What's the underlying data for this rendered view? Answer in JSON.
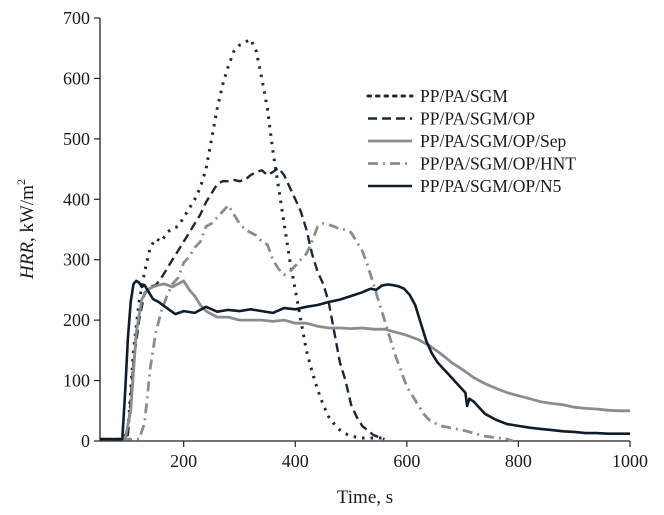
{
  "chart_data": {
    "type": "line",
    "title": "",
    "xlabel": "Time, s",
    "ylabel_main": "HRR",
    "ylabel_unit": ", kW/m",
    "ylabel_sup": "2",
    "xlim": [
      50,
      1000
    ],
    "ylim": [
      0,
      700
    ],
    "xticks": [
      200,
      400,
      600,
      800,
      1000
    ],
    "yticks": [
      0,
      100,
      200,
      300,
      400,
      500,
      600,
      700
    ],
    "grid": false,
    "legend_position": "top-right",
    "series": [
      {
        "name": "PP/PA/SGM",
        "color": "#1a2a3a",
        "style": "dotted",
        "points": [
          [
            50,
            3
          ],
          [
            90,
            3
          ],
          [
            100,
            15
          ],
          [
            110,
            150
          ],
          [
            120,
            230
          ],
          [
            130,
            280
          ],
          [
            140,
            320
          ],
          [
            150,
            335
          ],
          [
            160,
            330
          ],
          [
            170,
            345
          ],
          [
            180,
            352
          ],
          [
            190,
            355
          ],
          [
            200,
            370
          ],
          [
            210,
            385
          ],
          [
            220,
            400
          ],
          [
            230,
            420
          ],
          [
            240,
            450
          ],
          [
            250,
            500
          ],
          [
            260,
            550
          ],
          [
            270,
            590
          ],
          [
            280,
            620
          ],
          [
            290,
            645
          ],
          [
            300,
            655
          ],
          [
            310,
            660
          ],
          [
            320,
            665
          ],
          [
            330,
            645
          ],
          [
            340,
            600
          ],
          [
            350,
            550
          ],
          [
            360,
            480
          ],
          [
            370,
            420
          ],
          [
            380,
            360
          ],
          [
            390,
            300
          ],
          [
            400,
            250
          ],
          [
            410,
            200
          ],
          [
            420,
            150
          ],
          [
            430,
            115
          ],
          [
            440,
            85
          ],
          [
            450,
            60
          ],
          [
            460,
            40
          ],
          [
            470,
            28
          ],
          [
            480,
            18
          ],
          [
            490,
            12
          ],
          [
            500,
            8
          ],
          [
            520,
            5
          ],
          [
            560,
            5
          ]
        ]
      },
      {
        "name": "PP/PA/SGM/OP",
        "color": "#1a2a3a",
        "style": "dashed",
        "points": [
          [
            50,
            3
          ],
          [
            90,
            3
          ],
          [
            100,
            10
          ],
          [
            110,
            130
          ],
          [
            120,
            200
          ],
          [
            130,
            245
          ],
          [
            140,
            255
          ],
          [
            150,
            258
          ],
          [
            160,
            270
          ],
          [
            170,
            285
          ],
          [
            180,
            300
          ],
          [
            190,
            315
          ],
          [
            200,
            330
          ],
          [
            210,
            345
          ],
          [
            220,
            360
          ],
          [
            230,
            375
          ],
          [
            240,
            395
          ],
          [
            250,
            410
          ],
          [
            260,
            425
          ],
          [
            270,
            430
          ],
          [
            280,
            430
          ],
          [
            290,
            432
          ],
          [
            300,
            430
          ],
          [
            310,
            432
          ],
          [
            320,
            440
          ],
          [
            330,
            445
          ],
          [
            340,
            448
          ],
          [
            350,
            440
          ],
          [
            360,
            445
          ],
          [
            370,
            452
          ],
          [
            380,
            440
          ],
          [
            390,
            420
          ],
          [
            400,
            400
          ],
          [
            410,
            380
          ],
          [
            420,
            350
          ],
          [
            430,
            310
          ],
          [
            440,
            280
          ],
          [
            450,
            260
          ],
          [
            460,
            230
          ],
          [
            470,
            180
          ],
          [
            480,
            130
          ],
          [
            490,
            100
          ],
          [
            500,
            60
          ],
          [
            510,
            40
          ],
          [
            520,
            25
          ],
          [
            540,
            10
          ],
          [
            560,
            3
          ]
        ]
      },
      {
        "name": "PP/PA/SGM/OP/Sep",
        "color": "#8c8c8c",
        "style": "solid",
        "points": [
          [
            50,
            3
          ],
          [
            95,
            3
          ],
          [
            105,
            50
          ],
          [
            115,
            180
          ],
          [
            125,
            235
          ],
          [
            135,
            250
          ],
          [
            145,
            255
          ],
          [
            155,
            258
          ],
          [
            165,
            260
          ],
          [
            180,
            255
          ],
          [
            200,
            265
          ],
          [
            210,
            250
          ],
          [
            220,
            240
          ],
          [
            230,
            225
          ],
          [
            240,
            215
          ],
          [
            260,
            205
          ],
          [
            280,
            205
          ],
          [
            300,
            200
          ],
          [
            320,
            200
          ],
          [
            340,
            200
          ],
          [
            360,
            198
          ],
          [
            380,
            200
          ],
          [
            400,
            195
          ],
          [
            420,
            195
          ],
          [
            440,
            190
          ],
          [
            460,
            187
          ],
          [
            480,
            187
          ],
          [
            500,
            186
          ],
          [
            520,
            187
          ],
          [
            540,
            185
          ],
          [
            560,
            185
          ],
          [
            580,
            180
          ],
          [
            600,
            175
          ],
          [
            620,
            168
          ],
          [
            640,
            158
          ],
          [
            660,
            145
          ],
          [
            680,
            130
          ],
          [
            700,
            118
          ],
          [
            720,
            105
          ],
          [
            740,
            95
          ],
          [
            760,
            87
          ],
          [
            780,
            80
          ],
          [
            800,
            75
          ],
          [
            820,
            70
          ],
          [
            840,
            65
          ],
          [
            860,
            62
          ],
          [
            880,
            60
          ],
          [
            900,
            56
          ],
          [
            920,
            54
          ],
          [
            940,
            53
          ],
          [
            960,
            51
          ],
          [
            980,
            50
          ],
          [
            1000,
            50
          ]
        ]
      },
      {
        "name": "PP/PA/SGM/OP/HNT",
        "color": "#8c8c8c",
        "style": "dashdot",
        "points": [
          [
            50,
            3
          ],
          [
            120,
            3
          ],
          [
            130,
            30
          ],
          [
            140,
            120
          ],
          [
            150,
            180
          ],
          [
            160,
            215
          ],
          [
            170,
            240
          ],
          [
            180,
            260
          ],
          [
            190,
            270
          ],
          [
            200,
            295
          ],
          [
            210,
            305
          ],
          [
            220,
            320
          ],
          [
            230,
            330
          ],
          [
            240,
            355
          ],
          [
            250,
            360
          ],
          [
            260,
            370
          ],
          [
            270,
            380
          ],
          [
            280,
            390
          ],
          [
            290,
            375
          ],
          [
            300,
            360
          ],
          [
            310,
            350
          ],
          [
            320,
            345
          ],
          [
            330,
            340
          ],
          [
            340,
            330
          ],
          [
            350,
            325
          ],
          [
            360,
            300
          ],
          [
            370,
            285
          ],
          [
            380,
            275
          ],
          [
            390,
            280
          ],
          [
            400,
            290
          ],
          [
            410,
            300
          ],
          [
            420,
            310
          ],
          [
            430,
            330
          ],
          [
            440,
            355
          ],
          [
            450,
            360
          ],
          [
            460,
            358
          ],
          [
            470,
            355
          ],
          [
            480,
            350
          ],
          [
            490,
            350
          ],
          [
            500,
            345
          ],
          [
            510,
            330
          ],
          [
            520,
            315
          ],
          [
            530,
            290
          ],
          [
            540,
            260
          ],
          [
            550,
            230
          ],
          [
            560,
            200
          ],
          [
            570,
            170
          ],
          [
            580,
            140
          ],
          [
            590,
            115
          ],
          [
            600,
            90
          ],
          [
            610,
            75
          ],
          [
            620,
            60
          ],
          [
            630,
            45
          ],
          [
            640,
            35
          ],
          [
            660,
            25
          ],
          [
            700,
            18
          ],
          [
            740,
            8
          ],
          [
            780,
            3
          ],
          [
            790,
            0
          ]
        ]
      },
      {
        "name": "PP/PA/SGM/OP/N5",
        "color": "#0f1c2b",
        "style": "solid",
        "points": [
          [
            50,
            3
          ],
          [
            90,
            3
          ],
          [
            95,
            80
          ],
          [
            100,
            170
          ],
          [
            105,
            230
          ],
          [
            110,
            260
          ],
          [
            115,
            265
          ],
          [
            120,
            262
          ],
          [
            125,
            255
          ],
          [
            130,
            258
          ],
          [
            135,
            250
          ],
          [
            145,
            235
          ],
          [
            155,
            230
          ],
          [
            170,
            220
          ],
          [
            185,
            210
          ],
          [
            200,
            215
          ],
          [
            220,
            212
          ],
          [
            240,
            222
          ],
          [
            260,
            214
          ],
          [
            280,
            217
          ],
          [
            300,
            215
          ],
          [
            320,
            218
          ],
          [
            340,
            215
          ],
          [
            360,
            212
          ],
          [
            380,
            220
          ],
          [
            400,
            218
          ],
          [
            420,
            222
          ],
          [
            440,
            225
          ],
          [
            460,
            230
          ],
          [
            480,
            234
          ],
          [
            500,
            240
          ],
          [
            520,
            246
          ],
          [
            535,
            252
          ],
          [
            545,
            250
          ],
          [
            555,
            257
          ],
          [
            565,
            259
          ],
          [
            575,
            258
          ],
          [
            585,
            256
          ],
          [
            595,
            252
          ],
          [
            605,
            242
          ],
          [
            615,
            225
          ],
          [
            625,
            195
          ],
          [
            635,
            165
          ],
          [
            645,
            145
          ],
          [
            655,
            130
          ],
          [
            665,
            120
          ],
          [
            675,
            110
          ],
          [
            685,
            100
          ],
          [
            695,
            90
          ],
          [
            705,
            80
          ],
          [
            708,
            58
          ],
          [
            712,
            70
          ],
          [
            720,
            65
          ],
          [
            740,
            45
          ],
          [
            760,
            35
          ],
          [
            780,
            28
          ],
          [
            800,
            25
          ],
          [
            820,
            22
          ],
          [
            840,
            20
          ],
          [
            860,
            18
          ],
          [
            880,
            16
          ],
          [
            900,
            15
          ],
          [
            920,
            13
          ],
          [
            940,
            13
          ],
          [
            960,
            12
          ],
          [
            980,
            12
          ],
          [
            1000,
            12
          ]
        ]
      }
    ]
  }
}
